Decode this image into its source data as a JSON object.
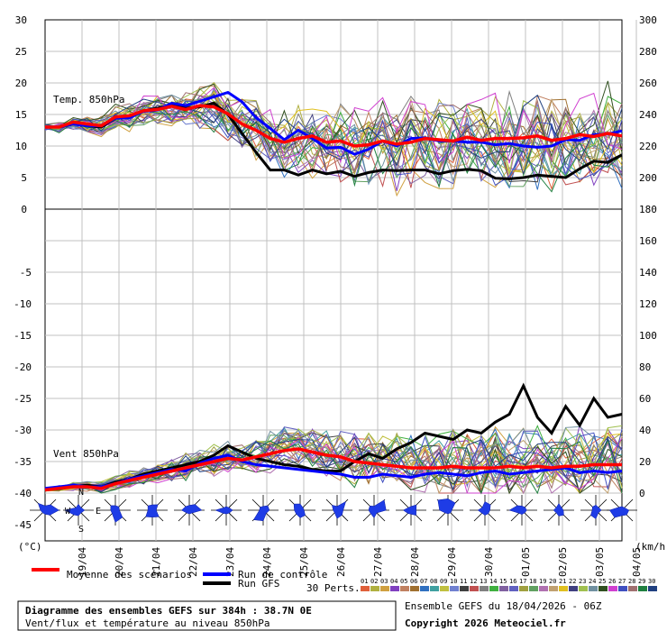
{
  "chart_data": [
    {
      "type": "line",
      "title": "Temp. 850hPa",
      "ylabel_left": "(°C)",
      "y_ticks_left": [
        "30",
        "25",
        "20",
        "15",
        "10",
        "5",
        "0"
      ],
      "y_ticks_right": [
        "300",
        "280",
        "260",
        "240",
        "220",
        "200",
        "180"
      ],
      "ylim": [
        0,
        30
      ],
      "x_ticks": [
        "19/04",
        "20/04",
        "21/04",
        "22/04",
        "23/04",
        "24/04",
        "25/04",
        "26/04",
        "27/04",
        "28/04",
        "29/04",
        "30/04",
        "01/05",
        "02/05",
        "03/05",
        "04/05"
      ],
      "series": [
        {
          "name": "Moyenne des scénarios",
          "color": "#ff0000",
          "values": [
            13,
            13,
            13.8,
            13.5,
            13.2,
            14.6,
            14.8,
            15.6,
            15.8,
            16.3,
            15.8,
            16.4,
            16.2,
            15.1,
            13.5,
            12.5,
            11.2,
            10.6,
            11.2,
            11.6,
            10.6,
            10.8,
            10,
            10.2,
            10.8,
            10.3,
            10.6,
            11.2,
            11,
            10.8,
            11.4,
            10.9,
            11.2,
            11.2,
            11.3,
            11.6,
            10.9,
            11.2,
            11.8,
            11.5,
            12,
            11.6
          ]
        },
        {
          "name": "Run de contrôle",
          "color": "#0000ff",
          "values": [
            13,
            13,
            13.5,
            13.2,
            13.2,
            14.4,
            14.5,
            15.5,
            15.7,
            16.8,
            16.4,
            17.1,
            17.8,
            18.5,
            17,
            14.5,
            12.8,
            11,
            12.5,
            11.2,
            9.7,
            9.8,
            8.7,
            9.5,
            10.8,
            10,
            11.2,
            11.3,
            10.8,
            10.8,
            10.6,
            10.6,
            10.2,
            10.4,
            10,
            9.8,
            10,
            11,
            10.9,
            11.8,
            11.9,
            12.4
          ]
        },
        {
          "name": "Run GFS",
          "color": "#000000",
          "values": [
            13,
            13,
            13.5,
            13.2,
            13,
            14.4,
            14.8,
            15.6,
            16,
            16.5,
            16,
            16.2,
            16.8,
            15,
            12,
            9,
            6.2,
            6.2,
            5.4,
            6.2,
            5.6,
            6,
            5.2,
            5.8,
            6.2,
            6.1,
            6.2,
            6.2,
            5.6,
            6.1,
            6.3,
            6.1,
            4.9,
            4.8,
            5,
            5.4,
            5.2,
            5,
            6.4,
            7.6,
            7.4,
            8.6
          ]
        }
      ]
    },
    {
      "type": "line",
      "title": "Vent 850hPa",
      "ylabel_right": "(km/h)",
      "y_ticks_left": [
        "0",
        "-5",
        "-10",
        "-15",
        "-20",
        "-25",
        "-30",
        "-35",
        "-40",
        "-45"
      ],
      "y_ticks_right": [
        "180",
        "160",
        "140",
        "120",
        "100",
        "80",
        "60",
        "40",
        "20",
        "0"
      ],
      "ylim": [
        0,
        100
      ],
      "x_ticks": [
        "19/04",
        "20/04",
        "21/04",
        "22/04",
        "23/04",
        "24/04",
        "25/04",
        "26/04",
        "27/04",
        "28/04",
        "29/04",
        "30/04",
        "01/05",
        "02/05",
        "03/05",
        "04/05"
      ],
      "series": [
        {
          "name": "Moyenne des scénarios",
          "color": "#ff0000",
          "values": [
            2,
            3,
            4,
            4,
            3,
            6,
            8,
            10,
            12,
            14,
            16,
            18,
            20,
            22,
            21,
            23,
            25,
            27,
            28,
            26,
            24,
            23,
            20,
            19,
            18,
            17,
            16,
            16,
            16,
            17,
            16,
            16,
            16,
            17,
            16,
            17,
            16,
            17,
            17,
            18,
            18,
            18
          ]
        },
        {
          "name": "Run de contrôle",
          "color": "#0000ff",
          "values": [
            3,
            4,
            5,
            4,
            4,
            6,
            9,
            11,
            13,
            15,
            14,
            19,
            22,
            24,
            20,
            18,
            17,
            16,
            15,
            14,
            13,
            12,
            10,
            10,
            12,
            11,
            10,
            12,
            13,
            12,
            11,
            13,
            14,
            12,
            13,
            14,
            15,
            16,
            13,
            14,
            13,
            14
          ]
        },
        {
          "name": "Run GFS",
          "color": "#000000",
          "values": [
            2,
            3,
            4,
            5,
            4,
            7,
            9,
            12,
            14,
            16,
            18,
            20,
            24,
            30,
            26,
            22,
            20,
            18,
            17,
            15,
            14,
            14,
            20,
            25,
            22,
            28,
            32,
            38,
            36,
            34,
            40,
            38,
            45,
            50,
            68,
            48,
            38,
            55,
            43,
            60,
            48,
            50
          ]
        }
      ]
    }
  ],
  "legend": {
    "mean_label": "Moyenne des scénarios",
    "control_label": "Run de contrôle",
    "gfs_label": "Run GFS",
    "perts_label": "30 Perts.",
    "pert_numbers": [
      "01",
      "02",
      "03",
      "04",
      "05",
      "06",
      "07",
      "08",
      "09",
      "10",
      "11",
      "12",
      "13",
      "14",
      "15",
      "16",
      "17",
      "18",
      "19",
      "20",
      "21",
      "22",
      "23",
      "24",
      "25",
      "26",
      "27",
      "28",
      "29",
      "30"
    ],
    "pert_colors": [
      "#e0603a",
      "#b0b040",
      "#d0a040",
      "#8040c0",
      "#c08060",
      "#a07030",
      "#3070c0",
      "#40a0a0",
      "#c0c040",
      "#7080d0",
      "#404040",
      "#c05050",
      "#808080",
      "#40b040",
      "#8060a0",
      "#6060c0",
      "#a0a040",
      "#60a060",
      "#b070b0",
      "#c0a070",
      "#e0c020",
      "#404080",
      "#a0c050",
      "#7090a0",
      "#305020",
      "#d040d0",
      "#4050c0",
      "#a07070",
      "#208040",
      "#204080"
    ]
  },
  "left_axis_unit": "(°C)",
  "right_axis_unit": "(km/h)",
  "compass": {
    "n": "N",
    "s": "S",
    "e": "E",
    "w": "W"
  },
  "footer": {
    "box_line1": "Diagramme des ensembles GEFS sur 384h : 38.7N 0E",
    "box_line2": "Vent/flux et température au niveau 850hPa",
    "right_line1": "Ensemble GEFS du 18/04/2026 - 06Z",
    "right_line2": "Copyright 2026 Meteociel.fr"
  },
  "colors": {
    "mean": "#ff0000",
    "control": "#0000ff",
    "gfs": "#000000",
    "grid": "#c0c0c0"
  }
}
